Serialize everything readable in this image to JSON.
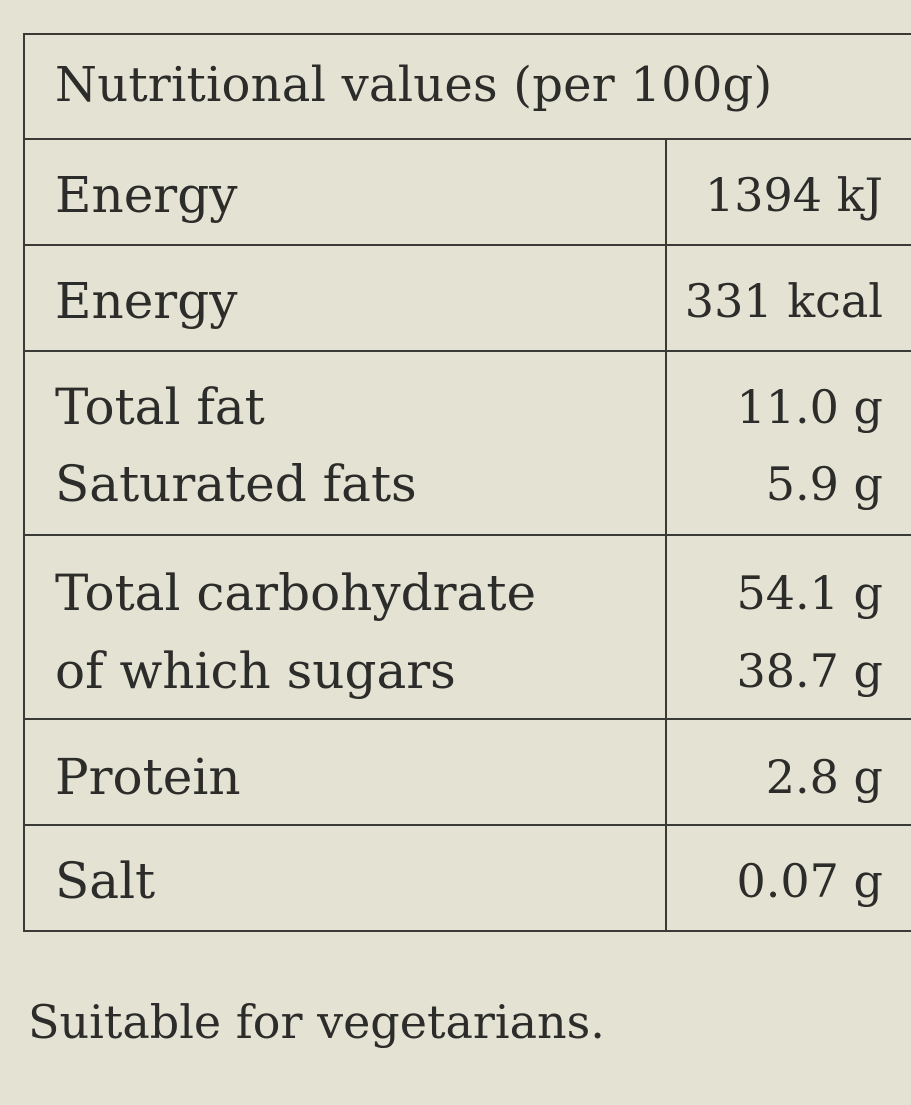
{
  "table": {
    "title": "Nutritional values (per 100g)",
    "rows": [
      {
        "lines": [
          {
            "name": "Energy",
            "value": "1394 kJ"
          }
        ]
      },
      {
        "lines": [
          {
            "name": "Energy",
            "value": "331 kcal"
          }
        ]
      },
      {
        "lines": [
          {
            "name": "Total fat",
            "value": "11.0 g"
          },
          {
            "name": "Saturated fats",
            "value": "5.9 g"
          }
        ]
      },
      {
        "lines": [
          {
            "name": "Total carbohydrate",
            "value": "54.1 g"
          },
          {
            "name": "of which sugars",
            "value": "38.7 g"
          }
        ]
      },
      {
        "lines": [
          {
            "name": "Protein",
            "value": "2.8 g"
          }
        ]
      },
      {
        "lines": [
          {
            "name": "Salt",
            "value": "0.07 g"
          }
        ]
      }
    ]
  },
  "footer": {
    "note": "Suitable for vegetarians."
  }
}
